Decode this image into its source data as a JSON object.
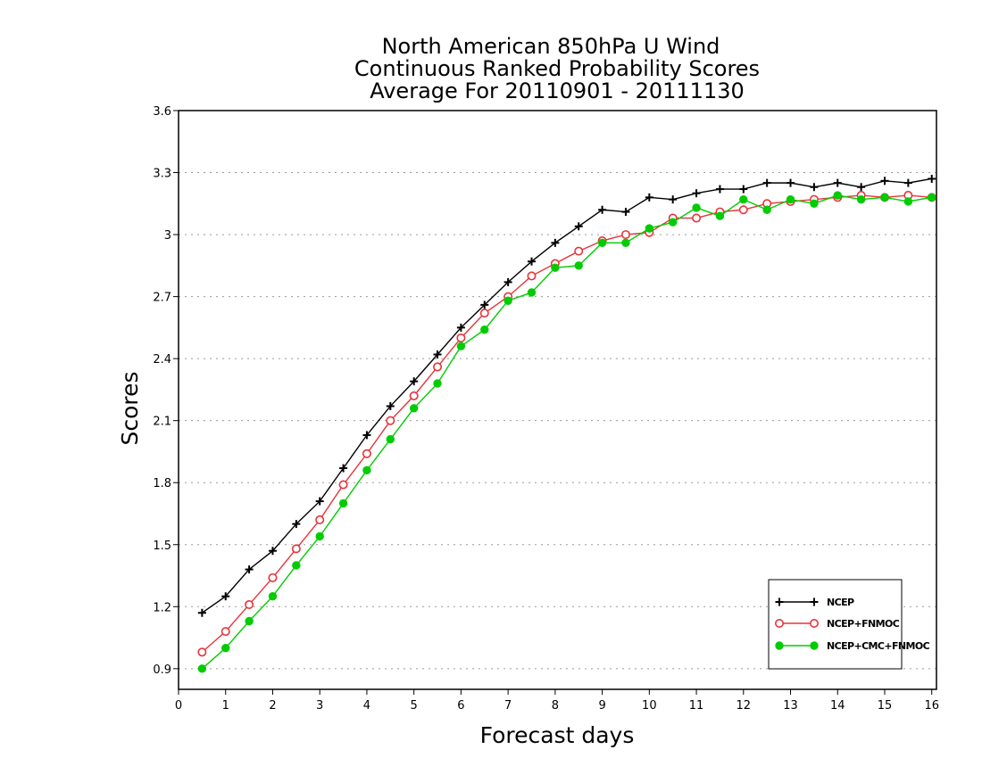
{
  "chart_data": {
    "type": "line",
    "title": [
      "North American 850hPa U Wind",
      "Continuous Ranked Probability Scores",
      "Average For 20110901 - 20111130"
    ],
    "xlabel": "Forecast days",
    "ylabel": "Scores",
    "xlim": [
      0,
      16.1
    ],
    "ylim": [
      0.8,
      3.6
    ],
    "xticks": [
      0,
      1,
      2,
      3,
      4,
      5,
      6,
      7,
      8,
      9,
      10,
      11,
      12,
      13,
      14,
      15,
      16
    ],
    "xtick_labels": [
      "0",
      "1",
      "2",
      "3",
      "4",
      "5",
      "6",
      "7",
      "8",
      "9",
      "10",
      "11",
      "12",
      "13",
      "14",
      "15",
      "16"
    ],
    "yticks": [
      0.9,
      1.2,
      1.5,
      1.8,
      2.1,
      2.4,
      2.7,
      3.0,
      3.3,
      3.6
    ],
    "ytick_labels": [
      "0.9",
      "1.2",
      "1.5",
      "1.8",
      "2.1",
      "2.4",
      "2.7",
      "3",
      "3.3",
      "3.6"
    ],
    "grid": "horizontal dotted",
    "legend_position": "bottom-right",
    "x": [
      0.5,
      1,
      1.5,
      2,
      2.5,
      3,
      3.5,
      4,
      4.5,
      5,
      5.5,
      6,
      6.5,
      7,
      7.5,
      8,
      8.5,
      9,
      9.5,
      10,
      10.5,
      11,
      11.5,
      12,
      12.5,
      13,
      13.5,
      14,
      14.5,
      15,
      15.5,
      16
    ],
    "series": [
      {
        "name": "NCEP",
        "color": "#000000",
        "marker": "plus",
        "values": [
          1.17,
          1.25,
          1.38,
          1.47,
          1.6,
          1.71,
          1.87,
          2.03,
          2.17,
          2.29,
          2.42,
          2.55,
          2.66,
          2.77,
          2.87,
          2.96,
          3.04,
          3.12,
          3.11,
          3.18,
          3.17,
          3.2,
          3.22,
          3.22,
          3.25,
          3.25,
          3.23,
          3.25,
          3.23,
          3.26,
          3.25,
          3.27
        ]
      },
      {
        "name": "NCEP+FNMOC",
        "color": "#e8333a",
        "marker": "open-circle",
        "values": [
          0.98,
          1.08,
          1.21,
          1.34,
          1.48,
          1.62,
          1.79,
          1.94,
          2.1,
          2.22,
          2.36,
          2.5,
          2.62,
          2.7,
          2.8,
          2.86,
          2.92,
          2.97,
          3.0,
          3.01,
          3.08,
          3.08,
          3.11,
          3.12,
          3.15,
          3.16,
          3.17,
          3.18,
          3.19,
          3.18,
          3.19,
          3.18
        ]
      },
      {
        "name": "NCEP+CMC+FNMOC",
        "color": "#00cc00",
        "marker": "filled-circle",
        "values": [
          0.9,
          1.0,
          1.13,
          1.25,
          1.4,
          1.54,
          1.7,
          1.86,
          2.01,
          2.16,
          2.28,
          2.46,
          2.54,
          2.68,
          2.72,
          2.84,
          2.85,
          2.96,
          2.96,
          3.03,
          3.06,
          3.13,
          3.09,
          3.17,
          3.12,
          3.17,
          3.15,
          3.19,
          3.17,
          3.18,
          3.16,
          3.18
        ]
      }
    ]
  }
}
